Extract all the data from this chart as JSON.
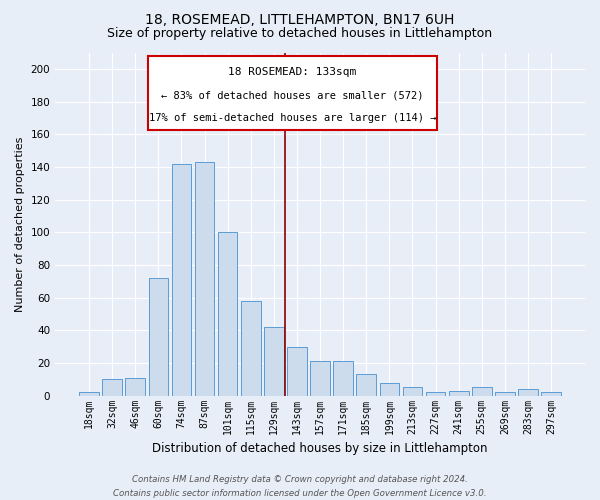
{
  "title": "18, ROSEMEAD, LITTLEHAMPTON, BN17 6UH",
  "subtitle": "Size of property relative to detached houses in Littlehampton",
  "xlabel": "Distribution of detached houses by size in Littlehampton",
  "ylabel": "Number of detached properties",
  "footnote1": "Contains HM Land Registry data © Crown copyright and database right 2024.",
  "footnote2": "Contains public sector information licensed under the Open Government Licence v3.0.",
  "categories": [
    "18sqm",
    "32sqm",
    "46sqm",
    "60sqm",
    "74sqm",
    "87sqm",
    "101sqm",
    "115sqm",
    "129sqm",
    "143sqm",
    "157sqm",
    "171sqm",
    "185sqm",
    "199sqm",
    "213sqm",
    "227sqm",
    "241sqm",
    "255sqm",
    "269sqm",
    "283sqm",
    "297sqm"
  ],
  "values": [
    2,
    10,
    11,
    72,
    142,
    143,
    100,
    58,
    42,
    30,
    21,
    21,
    13,
    8,
    5,
    2,
    3,
    5,
    2,
    4,
    2
  ],
  "bar_color": "#ccdcec",
  "bar_edge_color": "#5b9bd5",
  "property_label": "18 ROSEMEAD: 133sqm",
  "annotation_line1": "← 83% of detached houses are smaller (572)",
  "annotation_line2": "17% of semi-detached houses are larger (114) →",
  "vline_color": "#8b0000",
  "vline_position": 8.5,
  "annotation_box_color": "#ffffff",
  "annotation_box_edge": "#cc0000",
  "ylim": [
    0,
    210
  ],
  "yticks": [
    0,
    20,
    40,
    60,
    80,
    100,
    120,
    140,
    160,
    180,
    200
  ],
  "background_color": "#e8eef8",
  "plot_background": "#e8eef8",
  "grid_color": "#ffffff",
  "title_fontsize": 10,
  "subtitle_fontsize": 9,
  "ylabel_fontsize": 8,
  "xlabel_fontsize": 8.5,
  "tick_fontsize": 7,
  "ytick_fontsize": 7.5,
  "annot_title_fontsize": 8,
  "annot_line_fontsize": 7.5
}
